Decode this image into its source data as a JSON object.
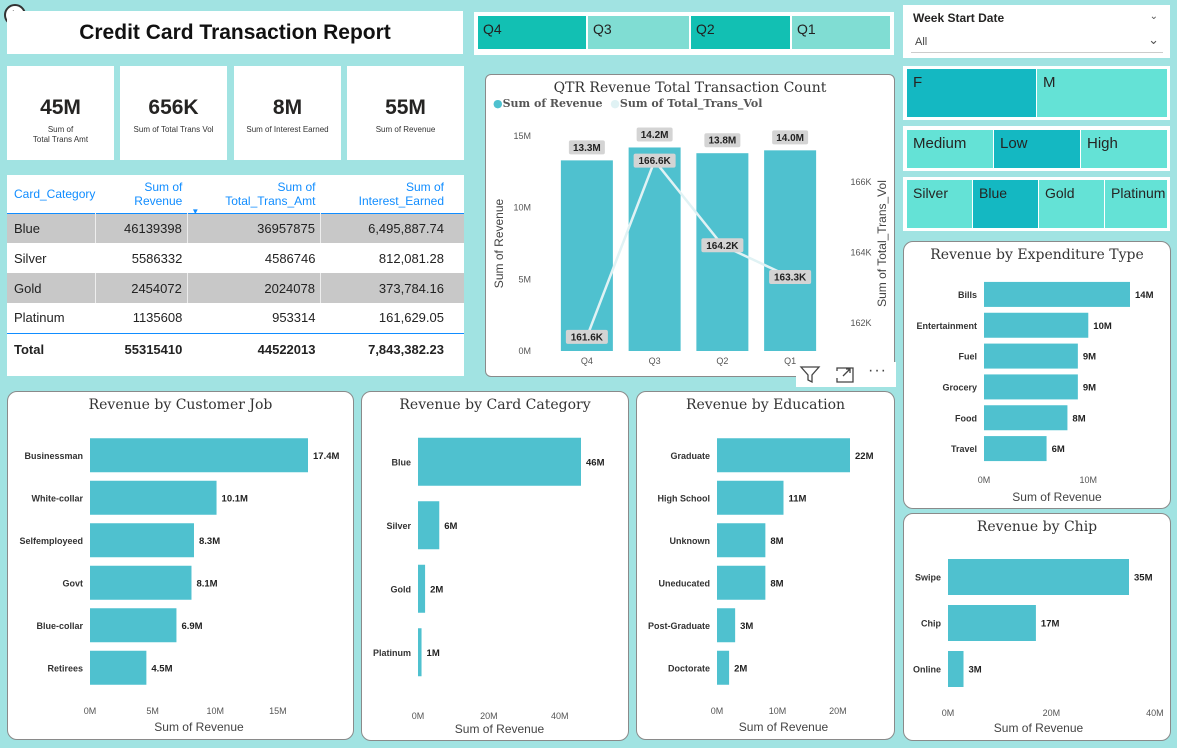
{
  "header": {
    "title": "Credit Card Transaction Report"
  },
  "kpis": [
    {
      "value": "45M",
      "label_line1": "Sum of",
      "label_line2": "Total Trans Amt"
    },
    {
      "value": "656K",
      "label_line1": "Sum of Total Trans Vol",
      "label_line2": ""
    },
    {
      "value": "8M",
      "label_line1": "Sum of Interest Earned",
      "label_line2": ""
    },
    {
      "value": "55M",
      "label_line1": "Sum of Revenue",
      "label_line2": ""
    }
  ],
  "quarter_slicer": [
    "Q4",
    "Q3",
    "Q2",
    "Q1"
  ],
  "week_slicer": {
    "label": "Week Start Date",
    "value": "All"
  },
  "gender_slicer": [
    "F",
    "M"
  ],
  "income_slicer": [
    "Medium",
    "Low",
    "High"
  ],
  "card_slicer": [
    "Silver",
    "Blue",
    "Gold",
    "Platinum"
  ],
  "table": {
    "headers": [
      "Card_Category",
      "Sum of Revenue",
      "Sum of Total_Trans_Amt",
      "Sum of Interest_Earned"
    ],
    "rows": [
      [
        "Blue",
        "46139398",
        "36957875",
        "6,495,887.74"
      ],
      [
        "Silver",
        "5586332",
        "4586746",
        "812,081.28"
      ],
      [
        "Gold",
        "2454072",
        "2024078",
        "373,784.16"
      ],
      [
        "Platinum",
        "1135608",
        "953314",
        "161,629.05"
      ]
    ],
    "total": [
      "Total",
      "55315410",
      "44522013",
      "7,843,382.23"
    ]
  },
  "colors": {
    "bar": "#4fc1cf",
    "slicer_dark": "#12c0b3",
    "slicer_light": "#80ddd3",
    "seg_dark": "#14b8c2",
    "seg_light": "#64e2d6",
    "line": "#e0f2f4",
    "accent": "#118dff"
  },
  "chart_data": [
    {
      "id": "qtr",
      "type": "bar+line",
      "title": "QTR Revenue Total Transaction Count",
      "legend": [
        "Sum of Revenue",
        "Sum of Total_Trans_Vol"
      ],
      "categories": [
        "Q4",
        "Q3",
        "Q2",
        "Q1"
      ],
      "series": [
        {
          "name": "Sum of Revenue",
          "values": [
            13.3,
            14.2,
            13.8,
            14.0
          ],
          "labels": [
            "13.3M",
            "14.2M",
            "13.8M",
            "14.0M"
          ]
        },
        {
          "name": "Sum of Total_Trans_Vol",
          "values": [
            161.6,
            166.6,
            164.2,
            163.3
          ],
          "labels": [
            "161.6K",
            "166.6K",
            "164.2K",
            "163.3K"
          ]
        }
      ],
      "ylabel": "Sum of Revenue",
      "y2label": "Sum of Total_Trans_Vol",
      "y_ticks": [
        "0M",
        "5M",
        "10M",
        "15M"
      ],
      "y2_ticks": [
        "162K",
        "164K",
        "166K"
      ],
      "ylim": [
        0,
        15
      ],
      "y2lim": [
        161.2,
        167.3
      ]
    },
    {
      "id": "job",
      "type": "bar",
      "orientation": "horizontal",
      "title": "Revenue by Customer Job",
      "categories": [
        "Businessman",
        "White-collar",
        "Selfemployeed",
        "Govt",
        "Blue-collar",
        "Retirees"
      ],
      "values": [
        17.4,
        10.1,
        8.3,
        8.1,
        6.9,
        4.5
      ],
      "labels": [
        "17.4M",
        "10.1M",
        "8.3M",
        "8.1M",
        "6.9M",
        "4.5M"
      ],
      "xlabel": "Sum of Revenue",
      "x_ticks": [
        {
          "v": 0,
          "t": "0M"
        },
        {
          "v": 5,
          "t": "5M"
        },
        {
          "v": 10,
          "t": "10M"
        },
        {
          "v": 15,
          "t": "15M"
        }
      ],
      "xlim": [
        0,
        17.4
      ]
    },
    {
      "id": "card",
      "type": "bar",
      "orientation": "horizontal",
      "title": "Revenue by Card Category",
      "categories": [
        "Blue",
        "Silver",
        "Gold",
        "Platinum"
      ],
      "values": [
        46,
        6,
        2,
        1
      ],
      "labels": [
        "46M",
        "6M",
        "2M",
        "1M"
      ],
      "xlabel": "Sum of Revenue",
      "x_ticks": [
        {
          "v": 0,
          "t": "0M"
        },
        {
          "v": 20,
          "t": "20M"
        },
        {
          "v": 40,
          "t": "40M"
        }
      ],
      "xlim": [
        0,
        46
      ]
    },
    {
      "id": "edu",
      "type": "bar",
      "orientation": "horizontal",
      "title": "Revenue by Education",
      "categories": [
        "Graduate",
        "High School",
        "Unknown",
        "Uneducated",
        "Post-Graduate",
        "Doctorate"
      ],
      "values": [
        22,
        11,
        8,
        8,
        3,
        2
      ],
      "labels": [
        "22M",
        "11M",
        "8M",
        "8M",
        "3M",
        "2M"
      ],
      "xlabel": "Sum of Revenue",
      "x_ticks": [
        {
          "v": 0,
          "t": "0M"
        },
        {
          "v": 10,
          "t": "10M"
        },
        {
          "v": 20,
          "t": "20M"
        }
      ],
      "xlim": [
        0,
        22
      ]
    },
    {
      "id": "exp",
      "type": "bar",
      "orientation": "horizontal",
      "title": "Revenue by Expenditure Type",
      "categories": [
        "Bills",
        "Entertainment",
        "Fuel",
        "Grocery",
        "Food",
        "Travel"
      ],
      "values": [
        14,
        10,
        9,
        9,
        8,
        6
      ],
      "labels": [
        "14M",
        "10M",
        "9M",
        "9M",
        "8M",
        "6M"
      ],
      "xlabel": "Sum of Revenue",
      "x_ticks": [
        {
          "v": 0,
          "t": "0M"
        },
        {
          "v": 10,
          "t": "10M"
        }
      ],
      "xlim": [
        0,
        14
      ]
    },
    {
      "id": "chip",
      "type": "bar",
      "orientation": "horizontal",
      "title": "Revenue by Chip",
      "categories": [
        "Swipe",
        "Chip",
        "Online"
      ],
      "values": [
        35,
        17,
        3
      ],
      "labels": [
        "35M",
        "17M",
        "3M"
      ],
      "xlabel": "Sum of Revenue",
      "x_ticks": [
        {
          "v": 0,
          "t": "0M"
        },
        {
          "v": 20,
          "t": "20M"
        },
        {
          "v": 40,
          "t": "40M"
        }
      ],
      "xlim": [
        0,
        35
      ]
    }
  ]
}
